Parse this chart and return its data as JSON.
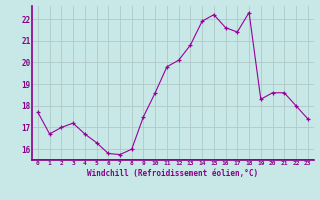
{
  "x": [
    0,
    1,
    2,
    3,
    4,
    5,
    6,
    7,
    8,
    9,
    10,
    11,
    12,
    13,
    14,
    15,
    16,
    17,
    18,
    19,
    20,
    21,
    22,
    23
  ],
  "y": [
    17.7,
    16.7,
    17.0,
    17.2,
    16.7,
    16.3,
    15.8,
    15.75,
    16.0,
    17.5,
    18.6,
    19.8,
    20.1,
    20.8,
    21.9,
    22.2,
    21.6,
    21.4,
    22.3,
    18.3,
    18.6,
    18.6,
    18.0,
    17.4
  ],
  "line_color": "#990099",
  "marker": "+",
  "marker_size": 3,
  "bg_color": "#c8e8e8",
  "grid_color": "#b0c8c8",
  "xlabel": "Windchill (Refroidissement éolien,°C)",
  "ylim": [
    15.5,
    22.6
  ],
  "xlim": [
    -0.5,
    23.5
  ],
  "yticks": [
    16,
    17,
    18,
    19,
    20,
    21,
    22
  ],
  "xticks": [
    0,
    1,
    2,
    3,
    4,
    5,
    6,
    7,
    8,
    9,
    10,
    11,
    12,
    13,
    14,
    15,
    16,
    17,
    18,
    19,
    20,
    21,
    22,
    23
  ],
  "tick_color": "#880088",
  "xlabel_color": "#880088",
  "border_color": "#880088",
  "font_family": "monospace"
}
